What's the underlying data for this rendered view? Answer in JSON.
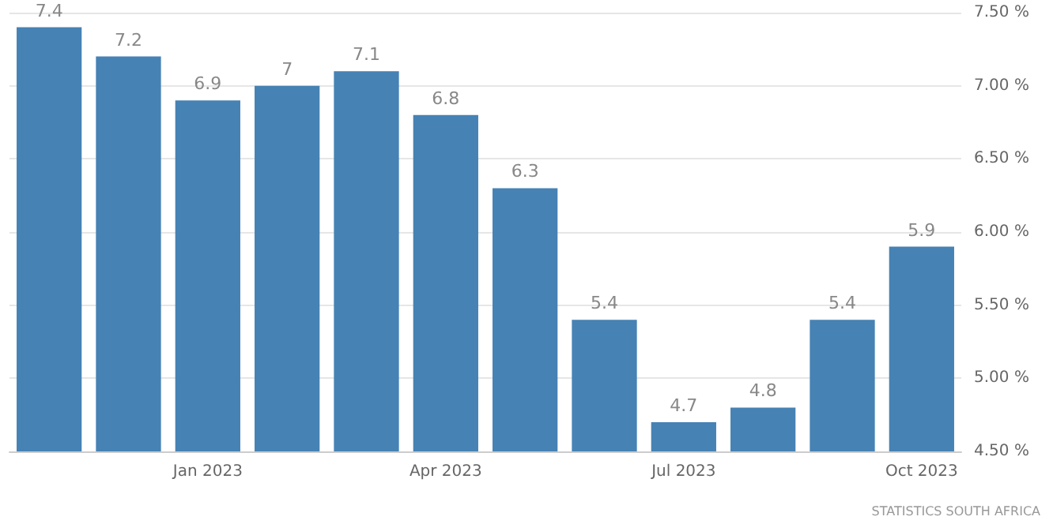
{
  "chart_data": {
    "type": "bar",
    "categories": [
      null,
      null,
      "Jan 2023",
      null,
      null,
      "Apr 2023",
      null,
      null,
      "Jul 2023",
      null,
      null,
      "Oct 2023"
    ],
    "values": [
      7.4,
      7.2,
      6.9,
      7,
      7.1,
      6.8,
      6.3,
      5.4,
      4.7,
      4.8,
      5.4,
      5.9
    ],
    "color": "#4682b4",
    "ylim": [
      4.5,
      7.5
    ],
    "yticks": [
      {
        "value": 4.5,
        "label": "4.50 %"
      },
      {
        "value": 5,
        "label": "5.00 %"
      },
      {
        "value": 5.5,
        "label": "5.50 %"
      },
      {
        "value": 6,
        "label": "6.00 %"
      },
      {
        "value": 6.5,
        "label": "6.50 %"
      },
      {
        "value": 7,
        "label": "7.00 %"
      },
      {
        "value": 7.5,
        "label": "7.50 %"
      }
    ],
    "grid": "y",
    "data_labels": true,
    "annotations": [
      "STATISTICS SOUTH AFRICA"
    ]
  }
}
